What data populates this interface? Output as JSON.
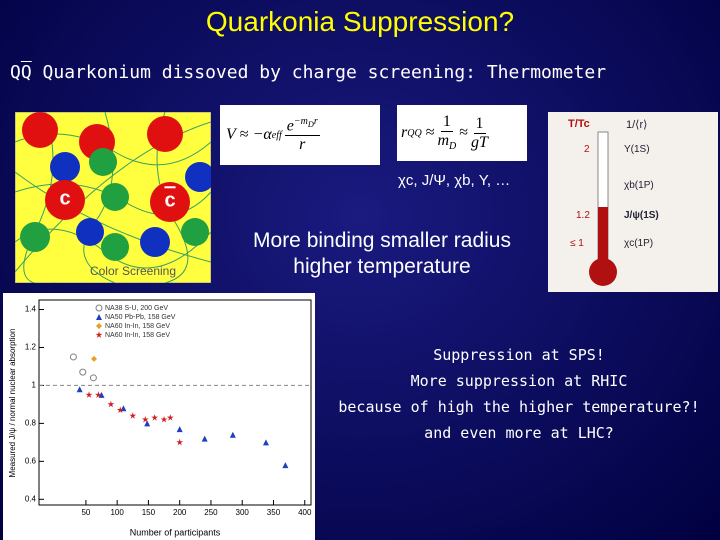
{
  "title": "Quarkonia Suppression?",
  "subtitle": {
    "q": "Q",
    "qbar": "Q",
    "text": "Quarkonium dissoved by charge screening: Thermometer"
  },
  "screening": {
    "quark": "c",
    "antiquark": "c",
    "caption": "Color Screening"
  },
  "potential": {
    "lhs": "V",
    "approx": "≈",
    "coef": "−α",
    "coef_sub": "eff",
    "numerator": "e",
    "exp": "−m",
    "exp_sub": "D",
    "exp_var": "r",
    "denominator": "r"
  },
  "radius": {
    "lhs": "r",
    "lhs_sub": "QQ",
    "approx1": "≈",
    "num1": "1",
    "den1": "m",
    "den1_sub": "D",
    "approx2": "≈",
    "num2": "1",
    "den2": "gT"
  },
  "states": "χc, J/Ψ, χb, Υ, …",
  "binding": [
    "More binding smaller radius",
    "higher temperature"
  ],
  "thermometer": {
    "header": [
      "T/Tc",
      "1/⟨r⟩"
    ],
    "rows": [
      {
        "ratio": "2",
        "state": "Υ(1S)"
      },
      {
        "state": "χb(1P)"
      },
      {
        "ratio": "1.2",
        "state": "J/ψ(1S)"
      },
      {
        "ratio": "≤ 1",
        "state": "χc(1P)"
      }
    ]
  },
  "remarks": [
    "Suppression at SPS!",
    "More suppression at RHIC",
    "because of high the higher temperature?!",
    "and even more at LHC?"
  ],
  "chart_data": {
    "type": "scatter",
    "xlabel": "Number of participants",
    "ylabel": "Measured J/ψ / normal nuclear absorption",
    "xlim": [
      -25,
      410
    ],
    "ylim": [
      0.37,
      1.45
    ],
    "xticks": [
      50,
      100,
      150,
      200,
      250,
      300,
      350,
      400
    ],
    "yticks": [
      0.4,
      0.6,
      0.8,
      1,
      1.2,
      1.4
    ],
    "reference_line": 1,
    "series": [
      {
        "name": "NA38 S-U, 200 GeV",
        "color": "#808080",
        "marker": "circle-open",
        "x": [
          30,
          45,
          62
        ],
        "values": [
          1.15,
          1.07,
          1.04
        ]
      },
      {
        "name": "NA50 Pb-Pb, 158 GeV",
        "color": "#1f3fbf",
        "marker": "triangle",
        "x": [
          40,
          75,
          110,
          148,
          200,
          240,
          285,
          338,
          369
        ],
        "values": [
          0.98,
          0.95,
          0.88,
          0.8,
          0.77,
          0.72,
          0.74,
          0.7,
          0.58
        ]
      },
      {
        "name": "NA60 In-In, 158 GeV",
        "color": "#e8a020",
        "marker": "diamond",
        "x": [
          63
        ],
        "values": [
          1.14
        ]
      },
      {
        "name": "NA60 In-In, 158 GeV",
        "color": "#d02020",
        "marker": "star",
        "x": [
          55,
          70,
          90,
          105,
          125,
          145,
          160,
          175,
          185,
          200
        ],
        "values": [
          0.95,
          0.95,
          0.9,
          0.87,
          0.84,
          0.82,
          0.83,
          0.82,
          0.83,
          0.7
        ]
      }
    ]
  }
}
